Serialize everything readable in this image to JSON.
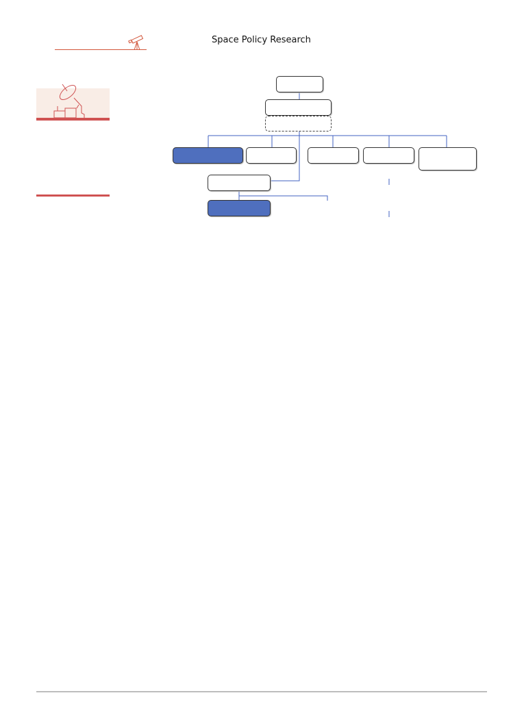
{
  "header": {
    "title": "Space Policy Research",
    "icon": "telescope-icon",
    "accent": "#d2553a"
  },
  "sidebar": {
    "illustration": "satellite-dish-icon",
    "illustration_bg": "#f9ede6",
    "accent": "#cf5252"
  },
  "org_chart": {
    "node_fill": "#4f6fbe",
    "connector": "#4060c0"
  },
  "footer": {
    "rule_color": "#bdbdbd"
  }
}
